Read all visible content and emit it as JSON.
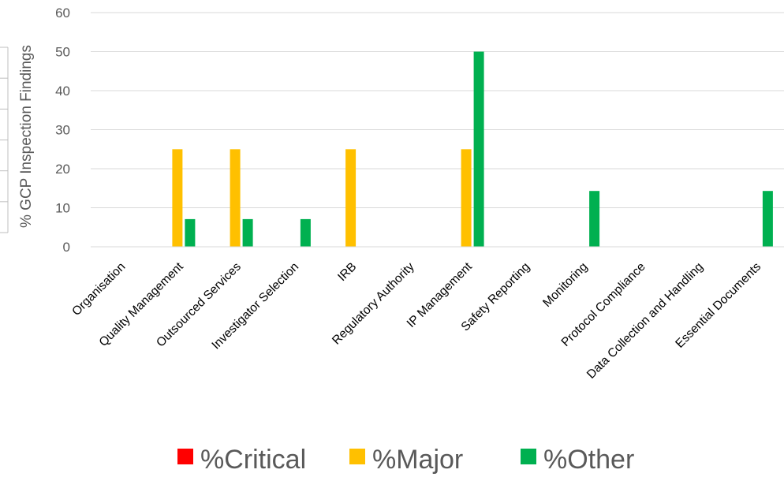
{
  "chart_data": {
    "type": "bar",
    "title": "",
    "xlabel": "",
    "ylabel": "% GCP Inspection Findings",
    "ylim": [
      0,
      60
    ],
    "yticks": [
      0,
      10,
      20,
      30,
      40,
      50,
      60
    ],
    "grid": true,
    "legend_position": "bottom",
    "categories": [
      "Organisation",
      "Quality Management",
      "Outsourced Services",
      "Investigator Selection",
      "IRB",
      "Regulatory Authority",
      "IP Management",
      "Safety Reporting",
      "Monitoring",
      "Protocol Compliance",
      "Data Collection and Handling",
      "Essential Documents"
    ],
    "series": [
      {
        "name": "%Critical",
        "color": "#ff0000",
        "values": [
          0,
          0,
          0,
          0,
          0,
          0,
          0,
          0,
          0,
          0,
          0,
          0
        ]
      },
      {
        "name": "%Major",
        "color": "#ffc000",
        "values": [
          0,
          25,
          25,
          0,
          25,
          0,
          25,
          0,
          0,
          0,
          0,
          0
        ]
      },
      {
        "name": "%Other",
        "color": "#00b050",
        "values": [
          0,
          7.1,
          7.1,
          7.1,
          0,
          0,
          50,
          0,
          14.3,
          0,
          0,
          14.3
        ]
      }
    ]
  }
}
